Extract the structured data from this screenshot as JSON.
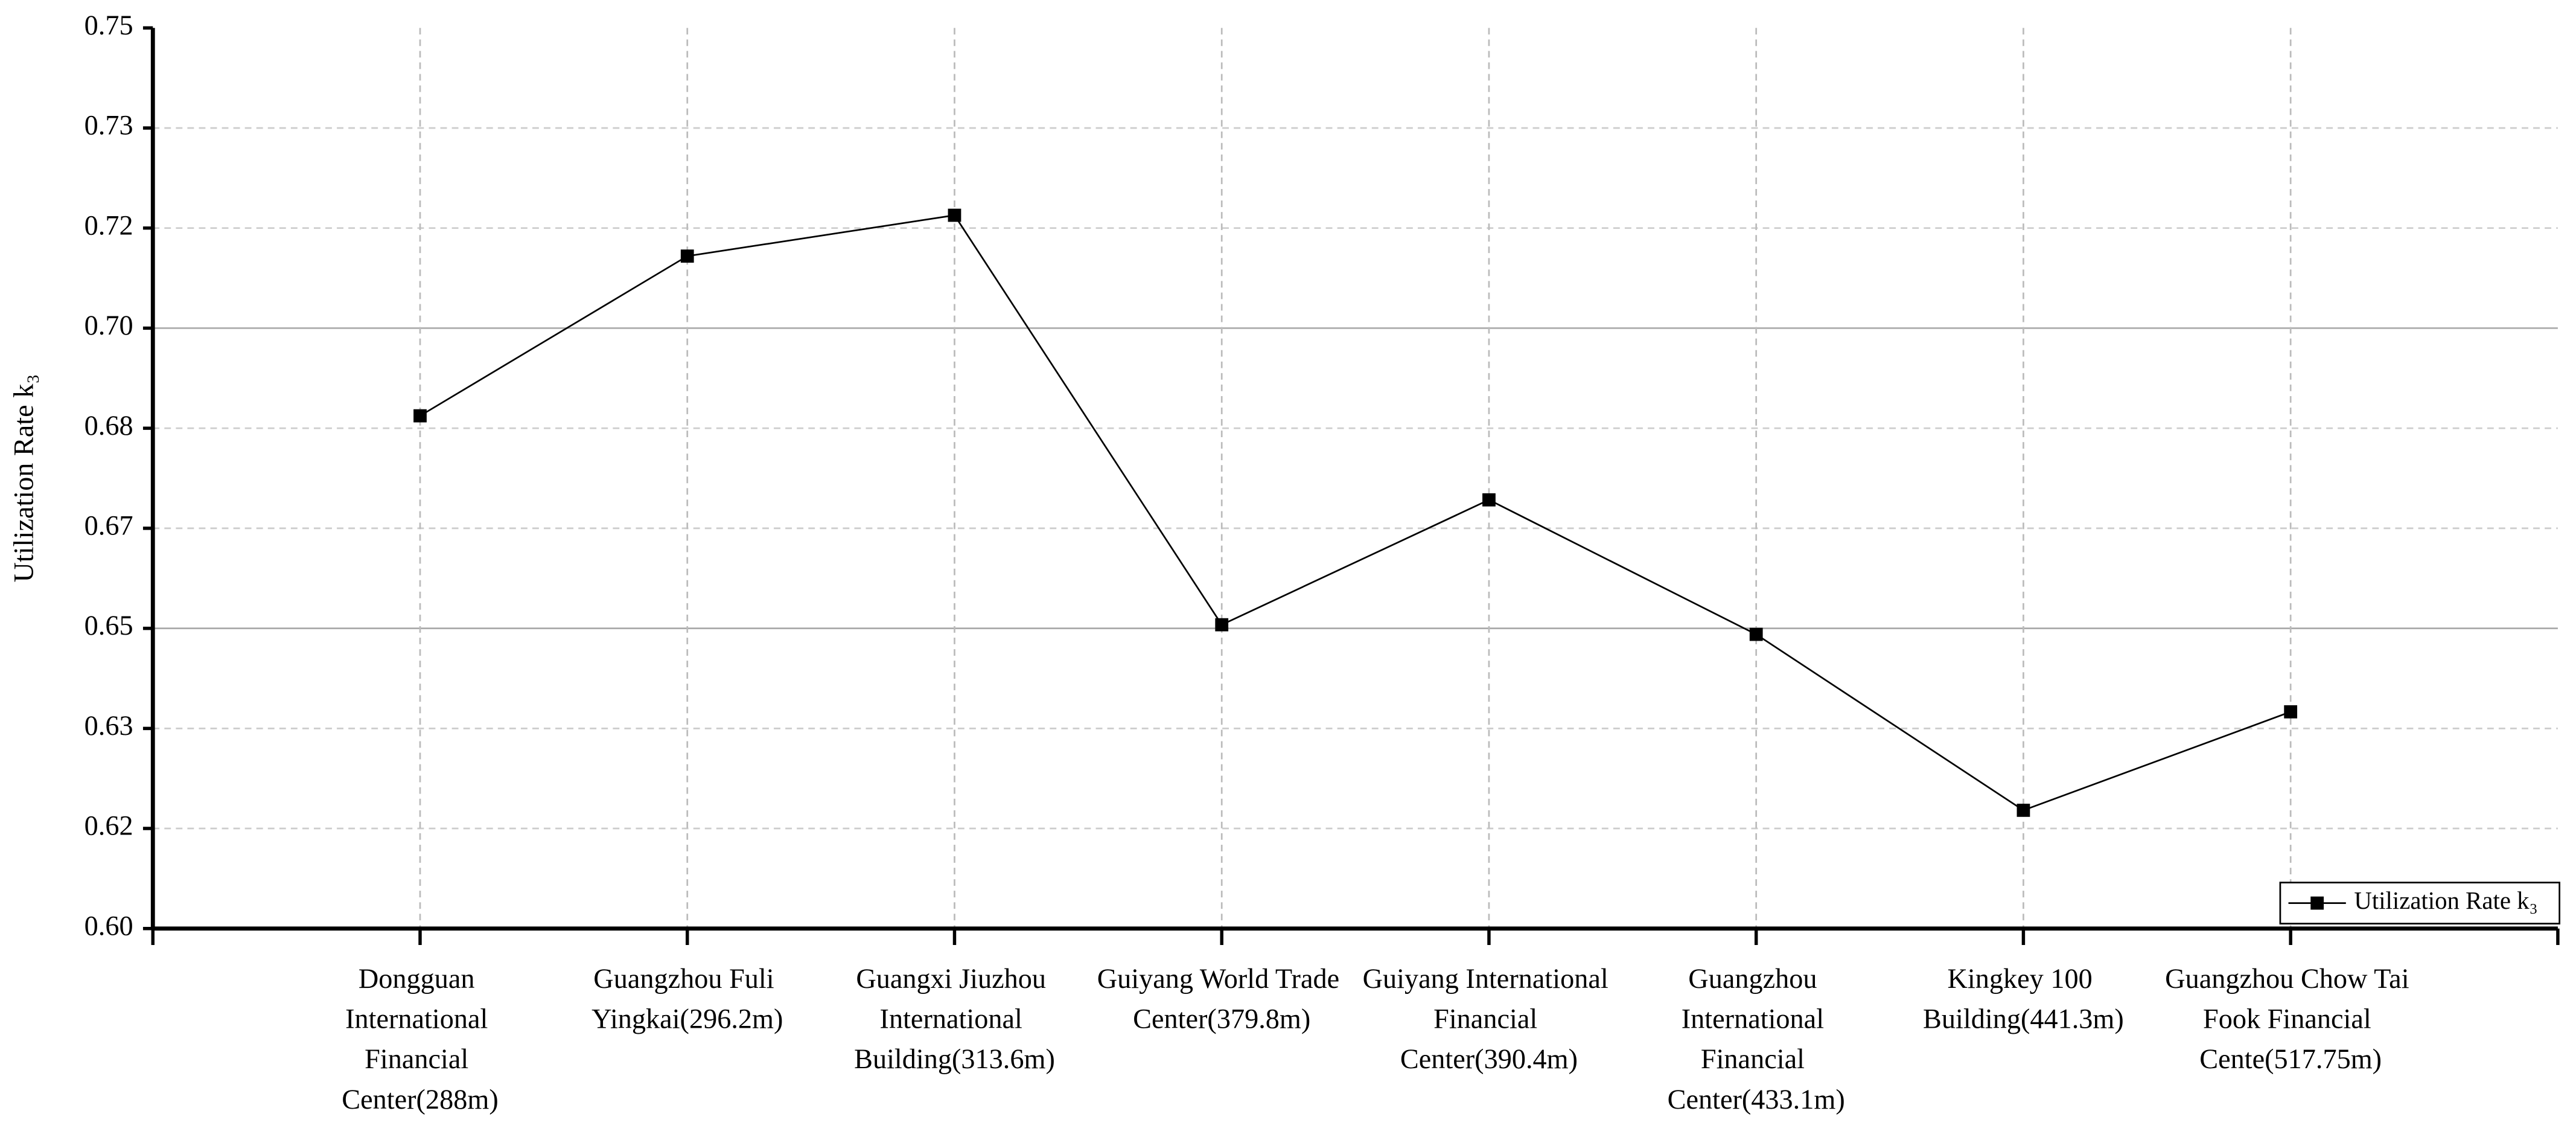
{
  "chart_data": {
    "type": "line",
    "y_label": "Utilization Rate k₃",
    "categories": [
      "Dongguan International Financial Center(288m)",
      "Guangzhou Fuli Yingkai(296.2m)",
      "Guangxi Jiuzhou International Building(313.6m)",
      "Guiyang World Trade Center(379.8m)",
      "Guiyang International Financial Center(390.4m)",
      "Guangzhou International Financial Center(433.1m)",
      "Kingkey 100 Building(441.3m)",
      "Guangzhou Chow Tai Fook Financial Cente(517.75m)"
    ],
    "series": [
      {
        "name": "Utilization Rate k₃",
        "color": "#000000",
        "values": [
          0.6854,
          0.712,
          0.7188,
          0.6506,
          0.6714,
          0.649,
          0.6197,
          0.6361
        ]
      }
    ],
    "ylim": [
      0.6,
      0.75
    ],
    "yticks": [
      {
        "value": 0.6,
        "label": "0.60"
      },
      {
        "value": 0.61667,
        "label": "0.62"
      },
      {
        "value": 0.63333,
        "label": "0.63"
      },
      0.65,
      {
        "value": 0.66667,
        "label": "0.67"
      },
      {
        "value": 0.68333,
        "label": "0.68"
      },
      {
        "value": 0.7,
        "label": "0.70"
      },
      {
        "value": 0.71667,
        "label": "0.72"
      },
      {
        "value": 0.73333,
        "label": "0.73"
      },
      0.75
    ],
    "grid": true,
    "legend": "lower right"
  }
}
